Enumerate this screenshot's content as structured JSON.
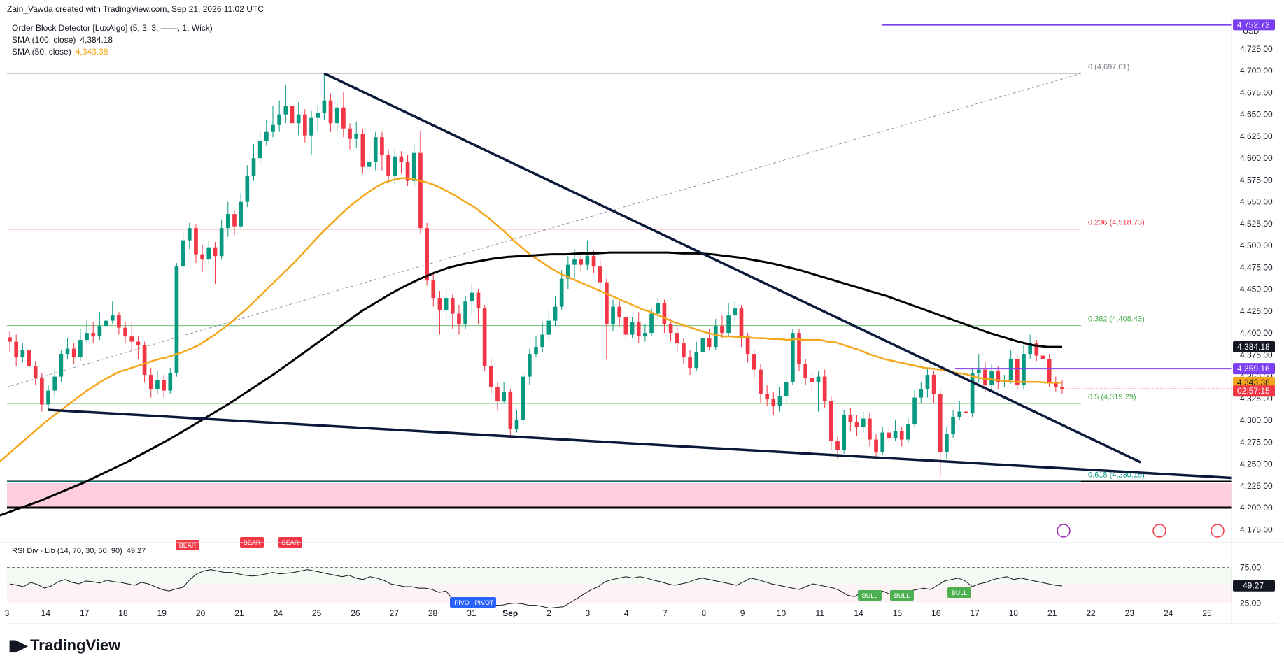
{
  "header": {
    "created_by": "Zain_Vawda created with TradingView.com, Sep 21, 2026 11:02 UTC"
  },
  "indicators": [
    {
      "label": "Order Block Detector [LuxAlgo] (5, 3, 3, ——, 1, Wick)",
      "value": ""
    },
    {
      "label": "SMA (100, close)",
      "value": "4,384.18",
      "color": "#131722"
    },
    {
      "label": "SMA (50, close)",
      "value": "4,343.38",
      "color": "#f4a71c"
    }
  ],
  "rsi_label": {
    "label": "RSI Div - Lib (14, 70, 30, 50, 90)",
    "value": "49.27"
  },
  "currency": "USD",
  "price_axis": {
    "ticks": [
      "4,725.00",
      "4,700.00",
      "4,675.00",
      "4,650.00",
      "4,625.00",
      "4,600.00",
      "4,575.00",
      "4,550.00",
      "4,525.00",
      "4,500.00",
      "4,475.00",
      "4,450.00",
      "4,425.00",
      "4,400.00",
      "4,375.00",
      "4,350.00",
      "4,325.00",
      "4,300.00",
      "4,275.00",
      "4,250.00",
      "4,225.00",
      "4,200.00",
      "4,175.00"
    ],
    "tick_values": [
      4725,
      4700,
      4675,
      4650,
      4625,
      4600,
      4575,
      4550,
      4525,
      4500,
      4475,
      4450,
      4425,
      4400,
      4375,
      4350,
      4325,
      4300,
      4275,
      4250,
      4225,
      4200,
      4175
    ],
    "labels": [
      {
        "text": "4,752.72",
        "value": 4752.72,
        "bg": "#7b3ff2",
        "fg": "#ffffff"
      },
      {
        "text": "4,384.18",
        "value": 4384.18,
        "bg": "#131722",
        "fg": "#ffffff"
      },
      {
        "text": "4,359.16",
        "value": 4359.16,
        "bg": "#7b3ff2",
        "fg": "#ffffff"
      },
      {
        "text": "4,343.38",
        "value": 4343.38,
        "bg": "#f4a71c",
        "fg": "#131722"
      },
      {
        "text": "02:57:15",
        "value": 4333.5,
        "bg": "#f23645",
        "fg": "#ffffff"
      }
    ]
  },
  "rsi_axis": {
    "ticks": [
      "75.00",
      "25.00"
    ],
    "tick_values": [
      75,
      25
    ],
    "current": "49.27"
  },
  "time_axis": {
    "labels": [
      "3",
      "14",
      "17",
      "18",
      "19",
      "20",
      "21",
      "24",
      "25",
      "26",
      "27",
      "28",
      "31",
      "Sep",
      "2",
      "3",
      "4",
      "7",
      "8",
      "9",
      "10",
      "11",
      "14",
      "15",
      "16",
      "17",
      "18",
      "21",
      "22",
      "23",
      "24",
      "25"
    ],
    "bold": [
      "Sep"
    ]
  },
  "fib_levels": [
    {
      "label": "0 (4,697.01)",
      "value": 4697.01,
      "color": "#787b86"
    },
    {
      "label": "0.236 (4,518.73)",
      "value": 4518.73,
      "color": "#f23645"
    },
    {
      "label": "0.382 (4,408.43)",
      "value": 4408.43,
      "color": "#4caf50"
    },
    {
      "label": "0.5 (4,319.29)",
      "value": 4319.29,
      "color": "#4caf50"
    },
    {
      "label": "0.618 (4,230.15)",
      "value": 4230.15,
      "color": "#009688"
    }
  ],
  "rsi_tags": [
    {
      "text": "BEAR",
      "color": "#f23645"
    },
    {
      "text": "BEAR",
      "color": "#f23645"
    },
    {
      "text": "BEAR",
      "color": "#f23645"
    },
    {
      "text": "PIVO",
      "color": "#2962ff"
    },
    {
      "text": "PIVOT",
      "color": "#2962ff"
    },
    {
      "text": "BULL",
      "color": "#4caf50"
    },
    {
      "text": "BULL",
      "color": "#4caf50"
    },
    {
      "text": "BULL",
      "color": "#4caf50"
    }
  ],
  "brand": {
    "name": "TradingView"
  },
  "colors": {
    "up": "#089981",
    "down": "#f23645",
    "sma50": "#f4a71c",
    "sma100": "#000000",
    "trend": "#0b1a3a",
    "purple": "#7b3ff2",
    "order_block": "#ffcde0"
  },
  "chart_data": {
    "type": "candlestick",
    "title": "",
    "ylim": [
      4160,
      4765
    ],
    "rsi_ylim": [
      0,
      100
    ],
    "candles": [
      [
        4395,
        4390,
        4402,
        4378
      ],
      [
        4390,
        4372,
        4398,
        4362
      ],
      [
        4372,
        4380,
        4388,
        4366
      ],
      [
        4380,
        4362,
        4386,
        4350
      ],
      [
        4362,
        4348,
        4368,
        4340
      ],
      [
        4348,
        4318,
        4354,
        4310
      ],
      [
        4318,
        4334,
        4340,
        4312
      ],
      [
        4334,
        4350,
        4358,
        4328
      ],
      [
        4350,
        4376,
        4380,
        4344
      ],
      [
        4376,
        4382,
        4394,
        4370
      ],
      [
        4382,
        4372,
        4388,
        4364
      ],
      [
        4372,
        4392,
        4404,
        4368
      ],
      [
        4392,
        4400,
        4414,
        4388
      ],
      [
        4400,
        4396,
        4412,
        4388
      ],
      [
        4396,
        4408,
        4424,
        4392
      ],
      [
        4408,
        4414,
        4420,
        4402
      ],
      [
        4414,
        4420,
        4436,
        4410
      ],
      [
        4420,
        4406,
        4424,
        4398
      ],
      [
        4406,
        4396,
        4412,
        4388
      ],
      [
        4396,
        4390,
        4412,
        4380
      ],
      [
        4390,
        4386,
        4396,
        4370
      ],
      [
        4386,
        4352,
        4390,
        4344
      ],
      [
        4352,
        4336,
        4360,
        4326
      ],
      [
        4336,
        4346,
        4356,
        4330
      ],
      [
        4346,
        4334,
        4352,
        4326
      ],
      [
        4334,
        4354,
        4360,
        4330
      ],
      [
        4354,
        4476,
        4480,
        4350
      ],
      [
        4476,
        4506,
        4516,
        4468
      ],
      [
        4506,
        4520,
        4526,
        4496
      ],
      [
        4520,
        4490,
        4524,
        4480
      ],
      [
        4490,
        4484,
        4500,
        4470
      ],
      [
        4484,
        4498,
        4506,
        4478
      ],
      [
        4498,
        4488,
        4504,
        4456
      ],
      [
        4488,
        4520,
        4530,
        4484
      ],
      [
        4520,
        4536,
        4550,
        4510
      ],
      [
        4536,
        4522,
        4540,
        4512
      ],
      [
        4522,
        4550,
        4560,
        4520
      ],
      [
        4550,
        4580,
        4592,
        4544
      ],
      [
        4580,
        4600,
        4616,
        4574
      ],
      [
        4600,
        4620,
        4632,
        4592
      ],
      [
        4620,
        4630,
        4644,
        4614
      ],
      [
        4630,
        4638,
        4660,
        4624
      ],
      [
        4638,
        4650,
        4666,
        4630
      ],
      [
        4650,
        4660,
        4684,
        4640
      ],
      [
        4660,
        4640,
        4676,
        4632
      ],
      [
        4640,
        4650,
        4664,
        4626
      ],
      [
        4650,
        4626,
        4656,
        4618
      ],
      [
        4626,
        4646,
        4654,
        4604
      ],
      [
        4646,
        4652,
        4660,
        4630
      ],
      [
        4652,
        4666,
        4697,
        4644
      ],
      [
        4666,
        4640,
        4674,
        4630
      ],
      [
        4640,
        4658,
        4666,
        4630
      ],
      [
        4658,
        4634,
        4676,
        4624
      ],
      [
        4634,
        4622,
        4640,
        4610
      ],
      [
        4622,
        4628,
        4642,
        4612
      ],
      [
        4628,
        4590,
        4634,
        4582
      ],
      [
        4590,
        4596,
        4608,
        4582
      ],
      [
        4596,
        4624,
        4630,
        4586
      ],
      [
        4624,
        4604,
        4630,
        4586
      ],
      [
        4604,
        4580,
        4610,
        4572
      ],
      [
        4580,
        4602,
        4610,
        4570
      ],
      [
        4602,
        4596,
        4608,
        4582
      ],
      [
        4596,
        4574,
        4604,
        4568
      ],
      [
        4574,
        4606,
        4616,
        4568
      ],
      [
        4606,
        4520,
        4632,
        4514
      ],
      [
        4520,
        4460,
        4526,
        4454
      ],
      [
        4460,
        4440,
        4470,
        4430
      ],
      [
        4440,
        4426,
        4448,
        4398
      ],
      [
        4426,
        4440,
        4452,
        4414
      ],
      [
        4440,
        4422,
        4444,
        4404
      ],
      [
        4422,
        4410,
        4432,
        4398
      ],
      [
        4410,
        4436,
        4442,
        4404
      ],
      [
        4436,
        4446,
        4456,
        4420
      ],
      [
        4446,
        4428,
        4450,
        4410
      ],
      [
        4428,
        4362,
        4432,
        4356
      ],
      [
        4362,
        4338,
        4370,
        4330
      ],
      [
        4338,
        4322,
        4344,
        4312
      ],
      [
        4322,
        4332,
        4344,
        4320
      ],
      [
        4332,
        4290,
        4336,
        4280
      ],
      [
        4290,
        4300,
        4312,
        4286
      ],
      [
        4300,
        4350,
        4354,
        4294
      ],
      [
        4350,
        4376,
        4382,
        4340
      ],
      [
        4376,
        4384,
        4396,
        4372
      ],
      [
        4384,
        4398,
        4412,
        4378
      ],
      [
        4398,
        4414,
        4426,
        4392
      ],
      [
        4414,
        4430,
        4442,
        4408
      ],
      [
        4430,
        4462,
        4472,
        4426
      ],
      [
        4462,
        4478,
        4488,
        4450
      ],
      [
        4478,
        4484,
        4496,
        4462
      ],
      [
        4484,
        4478,
        4492,
        4470
      ],
      [
        4478,
        4488,
        4506,
        4472
      ],
      [
        4488,
        4476,
        4494,
        4468
      ],
      [
        4476,
        4458,
        4484,
        4450
      ],
      [
        4458,
        4410,
        4462,
        4370
      ],
      [
        4410,
        4430,
        4438,
        4402
      ],
      [
        4430,
        4418,
        4436,
        4408
      ],
      [
        4418,
        4398,
        4424,
        4392
      ],
      [
        4398,
        4412,
        4418,
        4394
      ],
      [
        4412,
        4396,
        4424,
        4388
      ],
      [
        4396,
        4400,
        4410,
        4390
      ],
      [
        4400,
        4422,
        4428,
        4396
      ],
      [
        4422,
        4434,
        4440,
        4414
      ],
      [
        4434,
        4410,
        4438,
        4400
      ],
      [
        4410,
        4400,
        4416,
        4390
      ],
      [
        4400,
        4388,
        4408,
        4378
      ],
      [
        4388,
        4372,
        4394,
        4364
      ],
      [
        4372,
        4360,
        4380,
        4352
      ],
      [
        4360,
        4378,
        4390,
        4356
      ],
      [
        4378,
        4394,
        4402,
        4374
      ],
      [
        4394,
        4384,
        4404,
        4380
      ],
      [
        4384,
        4408,
        4416,
        4380
      ],
      [
        4408,
        4400,
        4420,
        4394
      ],
      [
        4400,
        4420,
        4434,
        4396
      ],
      [
        4420,
        4428,
        4436,
        4412
      ],
      [
        4428,
        4396,
        4432,
        4384
      ],
      [
        4396,
        4376,
        4400,
        4366
      ],
      [
        4376,
        4358,
        4380,
        4348
      ],
      [
        4358,
        4330,
        4364,
        4320
      ],
      [
        4330,
        4324,
        4340,
        4316
      ],
      [
        4324,
        4316,
        4332,
        4306
      ],
      [
        4316,
        4328,
        4338,
        4310
      ],
      [
        4328,
        4344,
        4350,
        4320
      ],
      [
        4344,
        4400,
        4404,
        4340
      ],
      [
        4400,
        4364,
        4404,
        4356
      ],
      [
        4364,
        4348,
        4370,
        4340
      ],
      [
        4348,
        4344,
        4354,
        4332
      ],
      [
        4344,
        4350,
        4356,
        4310
      ],
      [
        4350,
        4322,
        4358,
        4314
      ],
      [
        4322,
        4276,
        4328,
        4266
      ],
      [
        4276,
        4266,
        4282,
        4256
      ],
      [
        4266,
        4306,
        4312,
        4262
      ],
      [
        4306,
        4298,
        4314,
        4288
      ],
      [
        4298,
        4292,
        4306,
        4282
      ],
      [
        4292,
        4302,
        4310,
        4286
      ],
      [
        4302,
        4278,
        4308,
        4270
      ],
      [
        4278,
        4264,
        4284,
        4258
      ],
      [
        4264,
        4286,
        4292,
        4260
      ],
      [
        4286,
        4280,
        4292,
        4274
      ],
      [
        4280,
        4288,
        4300,
        4276
      ],
      [
        4288,
        4278,
        4292,
        4270
      ],
      [
        4278,
        4296,
        4302,
        4274
      ],
      [
        4296,
        4326,
        4334,
        4292
      ],
      [
        4326,
        4336,
        4344,
        4320
      ],
      [
        4336,
        4352,
        4360,
        4326
      ],
      [
        4352,
        4330,
        4356,
        4320
      ],
      [
        4330,
        4264,
        4336,
        4236
      ],
      [
        4264,
        4284,
        4292,
        4256
      ],
      [
        4284,
        4304,
        4312,
        4280
      ],
      [
        4304,
        4310,
        4322,
        4300
      ],
      [
        4310,
        4308,
        4316,
        4300
      ],
      [
        4308,
        4354,
        4360,
        4304
      ],
      [
        4354,
        4358,
        4376,
        4344
      ],
      [
        4358,
        4340,
        4366,
        4332
      ],
      [
        4340,
        4356,
        4364,
        4334
      ],
      [
        4356,
        4344,
        4362,
        4336
      ],
      [
        4344,
        4346,
        4352,
        4338
      ],
      [
        4346,
        4370,
        4380,
        4342
      ],
      [
        4370,
        4340,
        4374,
        4336
      ],
      [
        4340,
        4376,
        4386,
        4336
      ],
      [
        4376,
        4388,
        4398,
        4370
      ],
      [
        4388,
        4374,
        4392,
        4368
      ],
      [
        4374,
        4370,
        4380,
        4360
      ],
      [
        4370,
        4344,
        4376,
        4338
      ],
      [
        4344,
        4338,
        4350,
        4332
      ],
      [
        4338,
        4336,
        4346,
        4330
      ]
    ],
    "sma50": [
      4250,
      4258,
      4266,
      4274,
      4282,
      4290,
      4298,
      4305,
      4312,
      4319,
      4326,
      4333,
      4339,
      4345,
      4350,
      4355,
      4358,
      4361,
      4364,
      4367,
      4370,
      4372,
      4375,
      4378,
      4382,
      4386,
      4392,
      4398,
      4405,
      4412,
      4420,
      4428,
      4437,
      4446,
      4455,
      4464,
      4473,
      4482,
      4492,
      4502,
      4512,
      4521,
      4530,
      4539,
      4547,
      4554,
      4561,
      4567,
      4572,
      4575,
      4577,
      4577,
      4575,
      4573,
      4570,
      4566,
      4561,
      4556,
      4550,
      4545,
      4538,
      4531,
      4523,
      4515,
      4506,
      4498,
      4490,
      4484,
      4478,
      4472,
      4467,
      4463,
      4459,
      4455,
      4451,
      4447,
      4443,
      4439,
      4435,
      4431,
      4427,
      4424,
      4420,
      4416,
      4412,
      4409,
      4406,
      4403,
      4400,
      4398,
      4396,
      4396,
      4395,
      4395,
      4394,
      4394,
      4393,
      4393,
      4392,
      4393,
      4392,
      4392,
      4392,
      4390,
      4389,
      4386,
      4383,
      4380,
      4376,
      4373,
      4370,
      4368,
      4366,
      4364,
      4362,
      4360,
      4359,
      4358,
      4356,
      4354,
      4353,
      4350,
      4348,
      4347,
      4346,
      4345,
      4344,
      4344,
      4344,
      4344,
      4343,
      4343,
      4343
    ],
    "sma100": [
      4190,
      4196,
      4202,
      4208,
      4215,
      4222,
      4229,
      4237,
      4245,
      4253,
      4262,
      4271,
      4280,
      4290,
      4300,
      4310,
      4320,
      4331,
      4342,
      4353,
      4365,
      4377,
      4389,
      4401,
      4413,
      4425,
      4435,
      4445,
      4454,
      4462,
      4469,
      4475,
      4479,
      4482,
      4485,
      4487,
      4488,
      4489,
      4490,
      4490,
      4491,
      4491,
      4492,
      4492,
      4492,
      4492,
      4492,
      4491,
      4491,
      4490,
      4488,
      4486,
      4483,
      4480,
      4476,
      4472,
      4467,
      4462,
      4457,
      4452,
      4447,
      4442,
      4436,
      4430,
      4424,
      4418,
      4412,
      4406,
      4400,
      4395,
      4390,
      4386,
      4384,
      4384
    ],
    "rsi": [
      52,
      50,
      48,
      54,
      51,
      46,
      49,
      55,
      58,
      54,
      52,
      56,
      55,
      53,
      57,
      55,
      54,
      52,
      50,
      54,
      52,
      48,
      44,
      42,
      45,
      47,
      58,
      66,
      70,
      72,
      70,
      68,
      68,
      66,
      64,
      63,
      64,
      66,
      68,
      66,
      67,
      68,
      70,
      72,
      70,
      68,
      66,
      64,
      62,
      64,
      60,
      58,
      62,
      60,
      57,
      52,
      50,
      48,
      48,
      46,
      46,
      44,
      40,
      42,
      30,
      27,
      26,
      27,
      24,
      25,
      22,
      22,
      24,
      25,
      24,
      22,
      22,
      20,
      18,
      19,
      20,
      26,
      32,
      38,
      44,
      48,
      55,
      58,
      60,
      62,
      60,
      62,
      60,
      57,
      55,
      52,
      50,
      52,
      54,
      58,
      60,
      58,
      56,
      54,
      52,
      50,
      55,
      60,
      58,
      55,
      52,
      50,
      48,
      46,
      44,
      48,
      52,
      50,
      48,
      46,
      42,
      36,
      34,
      40,
      42,
      40,
      42,
      38,
      36,
      40,
      42,
      44,
      46,
      44,
      50,
      56,
      58,
      60,
      56,
      48,
      52,
      54,
      58,
      60,
      62,
      58,
      60,
      58,
      56,
      54,
      52,
      50,
      49
    ]
  }
}
